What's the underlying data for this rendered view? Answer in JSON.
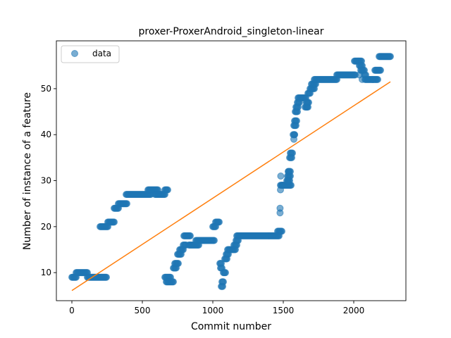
{
  "chart_data": {
    "type": "scatter",
    "title": "proxer-ProxerAndroid_singleton-linear",
    "xlabel": "Commit number",
    "ylabel": "Number of instance of a feature",
    "xlim": [
      -110,
      2370
    ],
    "ylim": [
      3.9,
      60.4
    ],
    "xticks": [
      0,
      500,
      1000,
      1500,
      2000
    ],
    "yticks": [
      10,
      20,
      30,
      40,
      50
    ],
    "grid": false,
    "legend": {
      "position": "upper-left",
      "entries": [
        "data"
      ]
    },
    "colors": {
      "data": "#1f77b4",
      "fit": "#ff7f0e"
    },
    "series": [
      {
        "name": "data",
        "kind": "scatter",
        "segments": [
          [
            0,
            30,
            9
          ],
          [
            30,
            110,
            10
          ],
          [
            110,
            245,
            9
          ],
          [
            200,
            255,
            20
          ],
          [
            255,
            300,
            21
          ],
          [
            300,
            330,
            24
          ],
          [
            330,
            390,
            25
          ],
          [
            385,
            560,
            27
          ],
          [
            540,
            610,
            28
          ],
          [
            590,
            660,
            27
          ],
          [
            660,
            680,
            28
          ],
          [
            660,
            700,
            9
          ],
          [
            670,
            720,
            8
          ],
          [
            720,
            740,
            11
          ],
          [
            730,
            755,
            12
          ],
          [
            750,
            775,
            14
          ],
          [
            765,
            790,
            15
          ],
          [
            790,
            810,
            16
          ],
          [
            795,
            840,
            18
          ],
          [
            830,
            900,
            16
          ],
          [
            880,
            1010,
            17
          ],
          [
            1000,
            1020,
            20
          ],
          [
            1020,
            1045,
            21
          ],
          [
            1050,
            1060,
            12
          ],
          [
            1055,
            1065,
            11
          ],
          [
            1060,
            1070,
            7
          ],
          [
            1065,
            1075,
            8
          ],
          [
            1075,
            1090,
            10
          ],
          [
            1085,
            1100,
            13
          ],
          [
            1095,
            1110,
            14
          ],
          [
            1105,
            1160,
            15
          ],
          [
            1150,
            1170,
            16
          ],
          [
            1165,
            1180,
            17
          ],
          [
            1170,
            1470,
            18
          ],
          [
            1460,
            1490,
            19
          ],
          [
            1480,
            1500,
            29
          ],
          [
            1490,
            1555,
            29
          ],
          [
            1525,
            1545,
            30
          ],
          [
            1530,
            1550,
            31
          ],
          [
            1535,
            1550,
            32
          ],
          [
            1545,
            1560,
            35
          ],
          [
            1550,
            1565,
            36
          ],
          [
            1570,
            1580,
            40
          ],
          [
            1575,
            1590,
            42
          ],
          [
            1580,
            1595,
            43
          ],
          [
            1585,
            1600,
            45
          ],
          [
            1590,
            1605,
            46
          ],
          [
            1600,
            1615,
            47
          ],
          [
            1605,
            1660,
            48
          ],
          [
            1660,
            1675,
            46
          ],
          [
            1665,
            1680,
            47
          ],
          [
            1675,
            1690,
            49
          ],
          [
            1690,
            1720,
            50
          ],
          [
            1700,
            1730,
            51
          ],
          [
            1720,
            1880,
            52
          ],
          [
            1880,
            2010,
            53
          ],
          [
            2005,
            2055,
            56
          ],
          [
            2040,
            2060,
            55
          ],
          [
            2055,
            2075,
            54
          ],
          [
            2075,
            2085,
            53
          ],
          [
            2080,
            2170,
            52
          ],
          [
            2150,
            2190,
            54
          ],
          [
            2180,
            2260,
            57
          ]
        ],
        "points": [
          [
            1477,
            23
          ],
          [
            1477,
            24
          ],
          [
            1480,
            28
          ],
          [
            1482,
            31
          ],
          [
            1535,
            30
          ],
          [
            1537,
            32
          ],
          [
            1575,
            39
          ],
          [
            1580,
            40
          ],
          [
            1655,
            46
          ],
          [
            1665,
            47
          ],
          [
            1667,
            46
          ],
          [
            2040,
            53
          ],
          [
            2050,
            54
          ],
          [
            2060,
            52
          ],
          [
            2135,
            52
          ]
        ]
      },
      {
        "name": "",
        "kind": "line",
        "x": [
          0,
          2260
        ],
        "y": [
          6.1,
          51.5
        ]
      }
    ]
  }
}
